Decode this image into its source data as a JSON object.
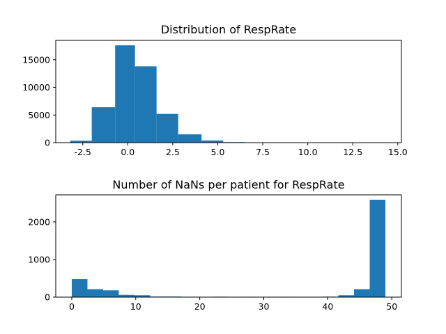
{
  "chart_data": [
    {
      "type": "bar",
      "title": "Distribution of RespRate",
      "xlabel": "",
      "ylabel": "",
      "xlim": [
        -4.0,
        15.2
      ],
      "ylim": [
        0,
        18500
      ],
      "grid": false,
      "color": "#1f77b4",
      "xticks": [
        "-2.5",
        "0.0",
        "2.5",
        "5.0",
        "7.5",
        "10.0",
        "12.5",
        "15.0"
      ],
      "yticks": [
        "0",
        "5000",
        "10000",
        "15000"
      ],
      "bins": [
        {
          "x0": -3.2,
          "x1": -2.0,
          "value": 350
        },
        {
          "x0": -2.0,
          "x1": -0.7,
          "value": 6400
        },
        {
          "x0": -0.7,
          "x1": 0.4,
          "value": 17600
        },
        {
          "x0": 0.4,
          "x1": 1.6,
          "value": 13800
        },
        {
          "x0": 1.6,
          "x1": 2.8,
          "value": 5200
        },
        {
          "x0": 2.8,
          "x1": 4.1,
          "value": 1500
        },
        {
          "x0": 4.1,
          "x1": 5.3,
          "value": 400
        },
        {
          "x0": 5.3,
          "x1": 6.5,
          "value": 100
        },
        {
          "x0": 6.5,
          "x1": 7.8,
          "value": 30
        },
        {
          "x0": 7.8,
          "x1": 9.0,
          "value": 10
        },
        {
          "x0": 9.0,
          "x1": 10.3,
          "value": 5
        },
        {
          "x0": 10.3,
          "x1": 11.5,
          "value": 3
        },
        {
          "x0": 11.5,
          "x1": 12.7,
          "value": 2
        },
        {
          "x0": 12.7,
          "x1": 14.0,
          "value": 1
        },
        {
          "x0": 14.0,
          "x1": 14.4,
          "value": 1
        }
      ]
    },
    {
      "type": "bar",
      "title": "Number of NaNs per patient for RespRate",
      "xlabel": "",
      "ylabel": "",
      "xlim": [
        -2.5,
        51.5
      ],
      "ylim": [
        0,
        2720
      ],
      "grid": false,
      "color": "#1f77b4",
      "xticks": [
        "0",
        "10",
        "20",
        "30",
        "40",
        "50"
      ],
      "yticks": [
        "0",
        "1000",
        "2000"
      ],
      "bins": [
        {
          "x0": 0.0,
          "x1": 2.45,
          "value": 480
        },
        {
          "x0": 2.45,
          "x1": 4.9,
          "value": 210
        },
        {
          "x0": 4.9,
          "x1": 7.35,
          "value": 180
        },
        {
          "x0": 7.35,
          "x1": 9.8,
          "value": 60
        },
        {
          "x0": 9.8,
          "x1": 12.25,
          "value": 50
        },
        {
          "x0": 12.25,
          "x1": 14.7,
          "value": 15
        },
        {
          "x0": 14.7,
          "x1": 17.15,
          "value": 15
        },
        {
          "x0": 17.15,
          "x1": 19.6,
          "value": 10
        },
        {
          "x0": 19.6,
          "x1": 22.05,
          "value": 5
        },
        {
          "x0": 22.05,
          "x1": 24.5,
          "value": 12
        },
        {
          "x0": 24.5,
          "x1": 26.95,
          "value": 5
        },
        {
          "x0": 26.95,
          "x1": 29.4,
          "value": 10
        },
        {
          "x0": 29.4,
          "x1": 31.85,
          "value": 5
        },
        {
          "x0": 31.85,
          "x1": 34.3,
          "value": 10
        },
        {
          "x0": 34.3,
          "x1": 36.75,
          "value": 5
        },
        {
          "x0": 36.75,
          "x1": 39.2,
          "value": 5
        },
        {
          "x0": 39.2,
          "x1": 41.65,
          "value": 12
        },
        {
          "x0": 41.65,
          "x1": 44.1,
          "value": 50
        },
        {
          "x0": 44.1,
          "x1": 46.55,
          "value": 210
        },
        {
          "x0": 46.55,
          "x1": 49.0,
          "value": 2590
        }
      ]
    }
  ]
}
